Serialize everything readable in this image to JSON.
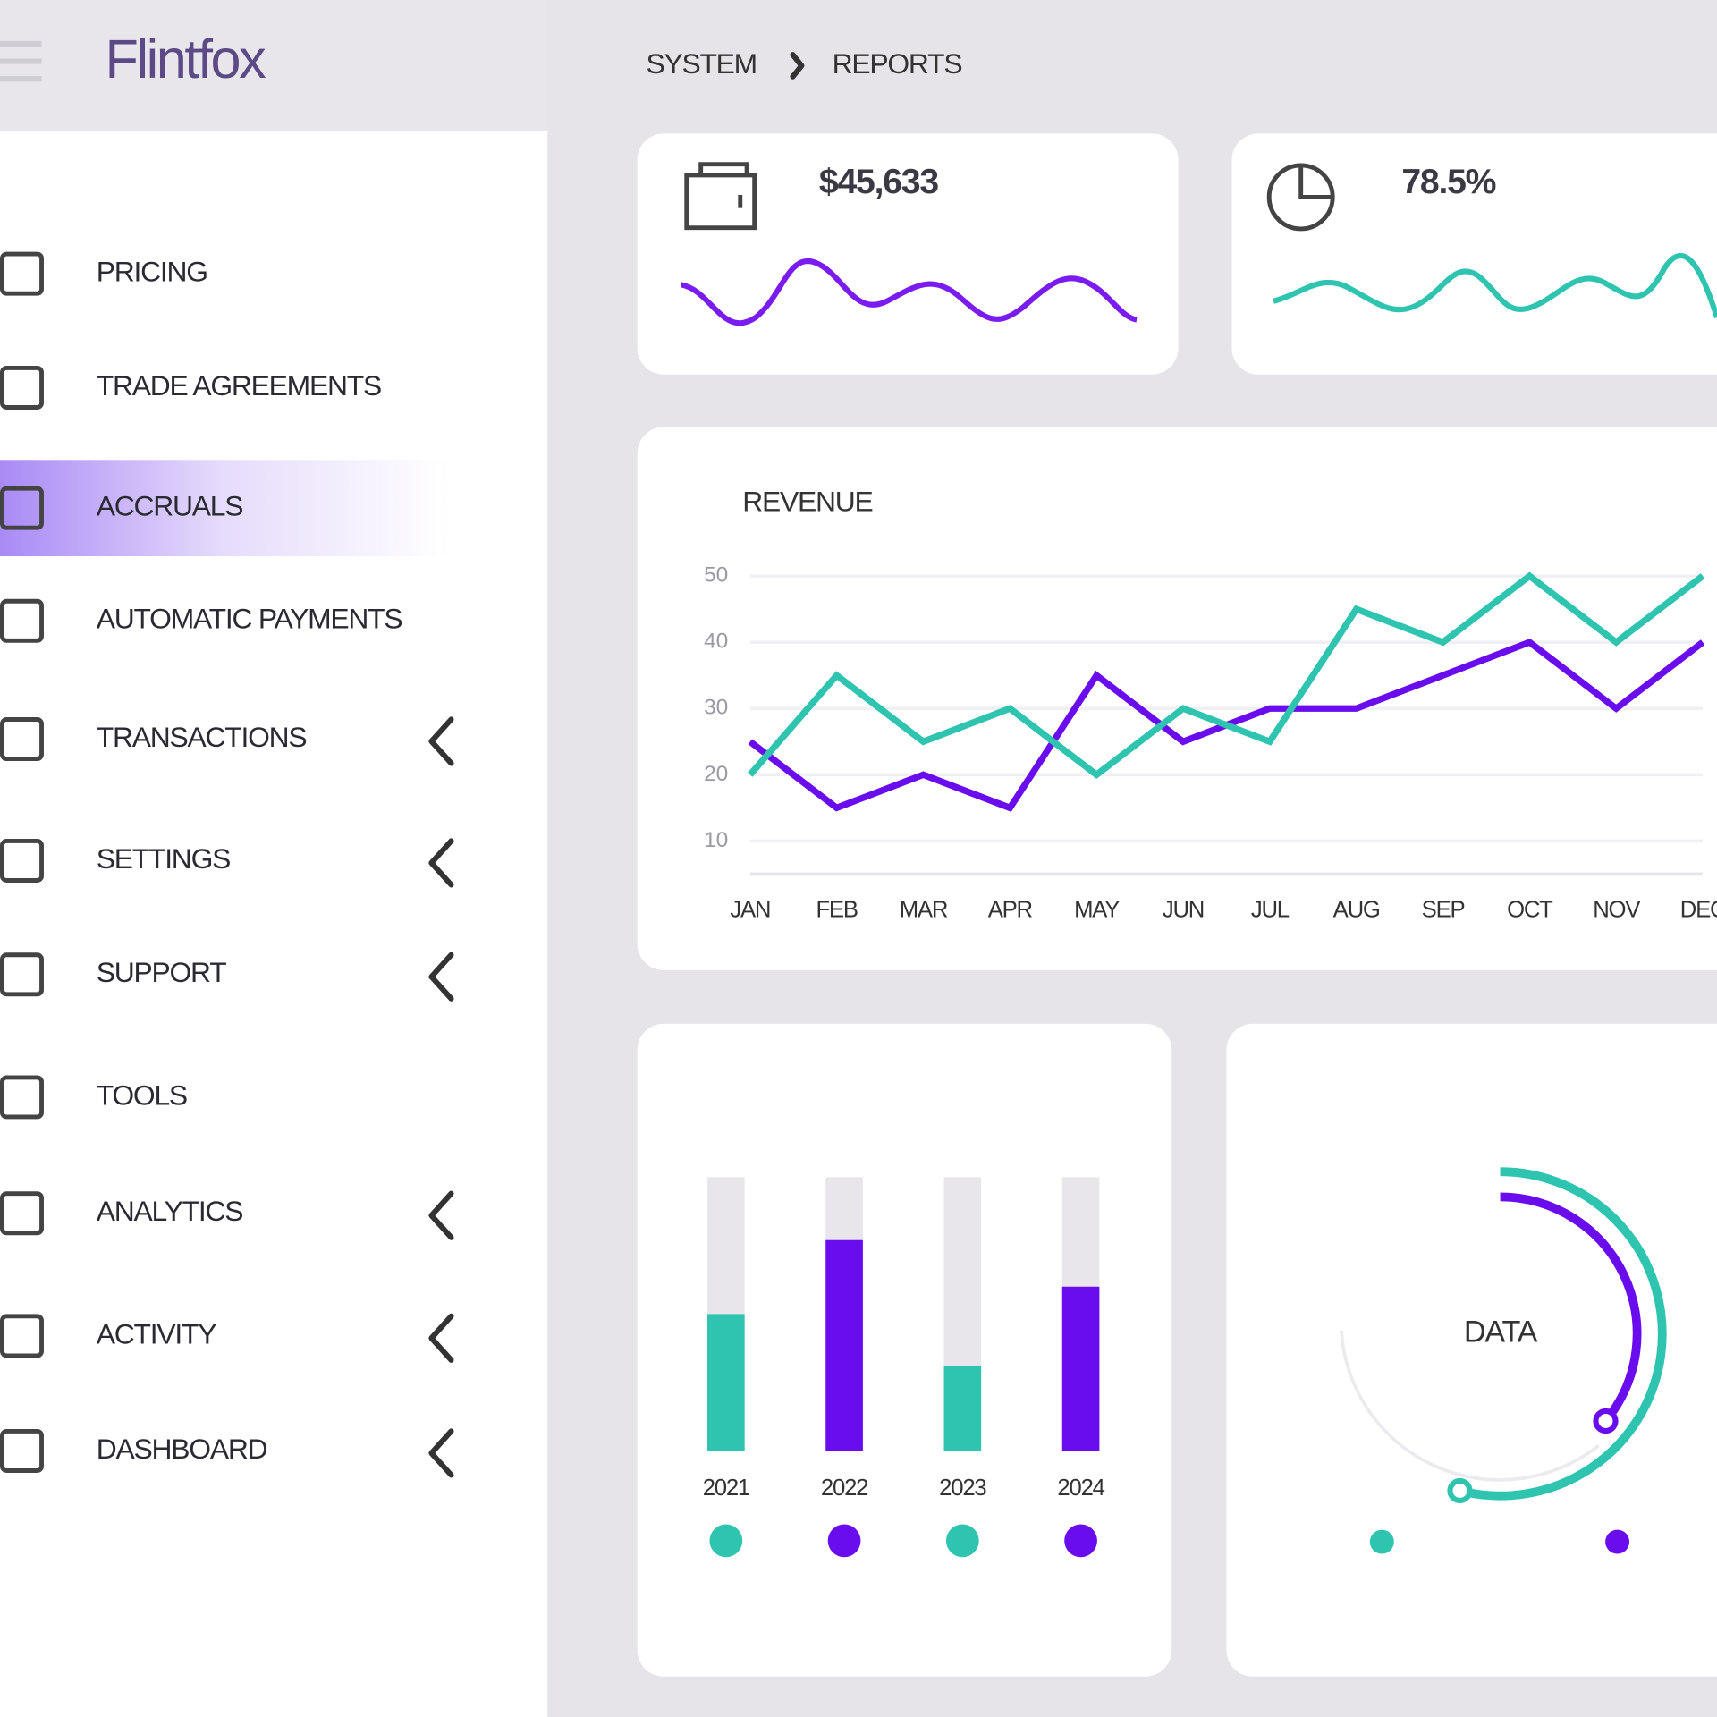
{
  "header": {
    "logo": "Flintfox",
    "breadcrumb": [
      "SYSTEM",
      "REPORTS"
    ]
  },
  "nav": {
    "items": [
      "PRICING",
      "TRADE AGREEMENTS",
      "ACCRUALS",
      "AUTOMATIC PAYMENTS",
      "TRANSACTIONS",
      "SETTINGS",
      "SUPPORT",
      "TOOLS",
      "ANALYTICS",
      "ACTIVITY",
      "DASHBOARD"
    ],
    "active": 2,
    "expandable": [
      false,
      false,
      false,
      false,
      true,
      true,
      true,
      false,
      true,
      true,
      true
    ]
  },
  "stats": [
    {
      "value": "$45,633",
      "color": "#7a1cf0"
    },
    {
      "value": "78.5%",
      "color": "#2ec4b0"
    }
  ],
  "chart_data": [
    {
      "type": "line",
      "title": "REVENUE",
      "categories": [
        "JAN",
        "FEB",
        "MAR",
        "APR",
        "MAY",
        "JUN",
        "JUL",
        "AUG",
        "SEP",
        "OCT",
        "NOV",
        "DEC"
      ],
      "series": [
        {
          "color": "#6a0dee",
          "values": [
            25,
            15,
            20,
            15,
            35,
            25,
            30,
            30,
            35,
            40,
            30,
            40
          ]
        },
        {
          "color": "#2ec4b0",
          "values": [
            20,
            35,
            25,
            30,
            20,
            30,
            25,
            45,
            40,
            50,
            40,
            50
          ]
        }
      ],
      "ylim": [
        5,
        50
      ],
      "yticks": [
        10,
        20,
        30,
        40,
        50
      ],
      "grid": true
    },
    {
      "type": "bar",
      "categories": [
        "2021",
        "2022",
        "2023",
        "2024"
      ],
      "values": [
        50,
        77,
        31,
        60
      ],
      "colors": [
        "#2ec4b0",
        "#6a0dee",
        "#2ec4b0",
        "#6a0dee"
      ],
      "track_color": "#e8e6ea",
      "ylim": [
        0,
        100
      ]
    },
    {
      "type": "radial",
      "center_label": "DATA",
      "values": [
        54,
        36
      ],
      "colors": [
        "#2ec4b0",
        "#6a0dee"
      ],
      "ylim": [
        0,
        100
      ]
    }
  ]
}
